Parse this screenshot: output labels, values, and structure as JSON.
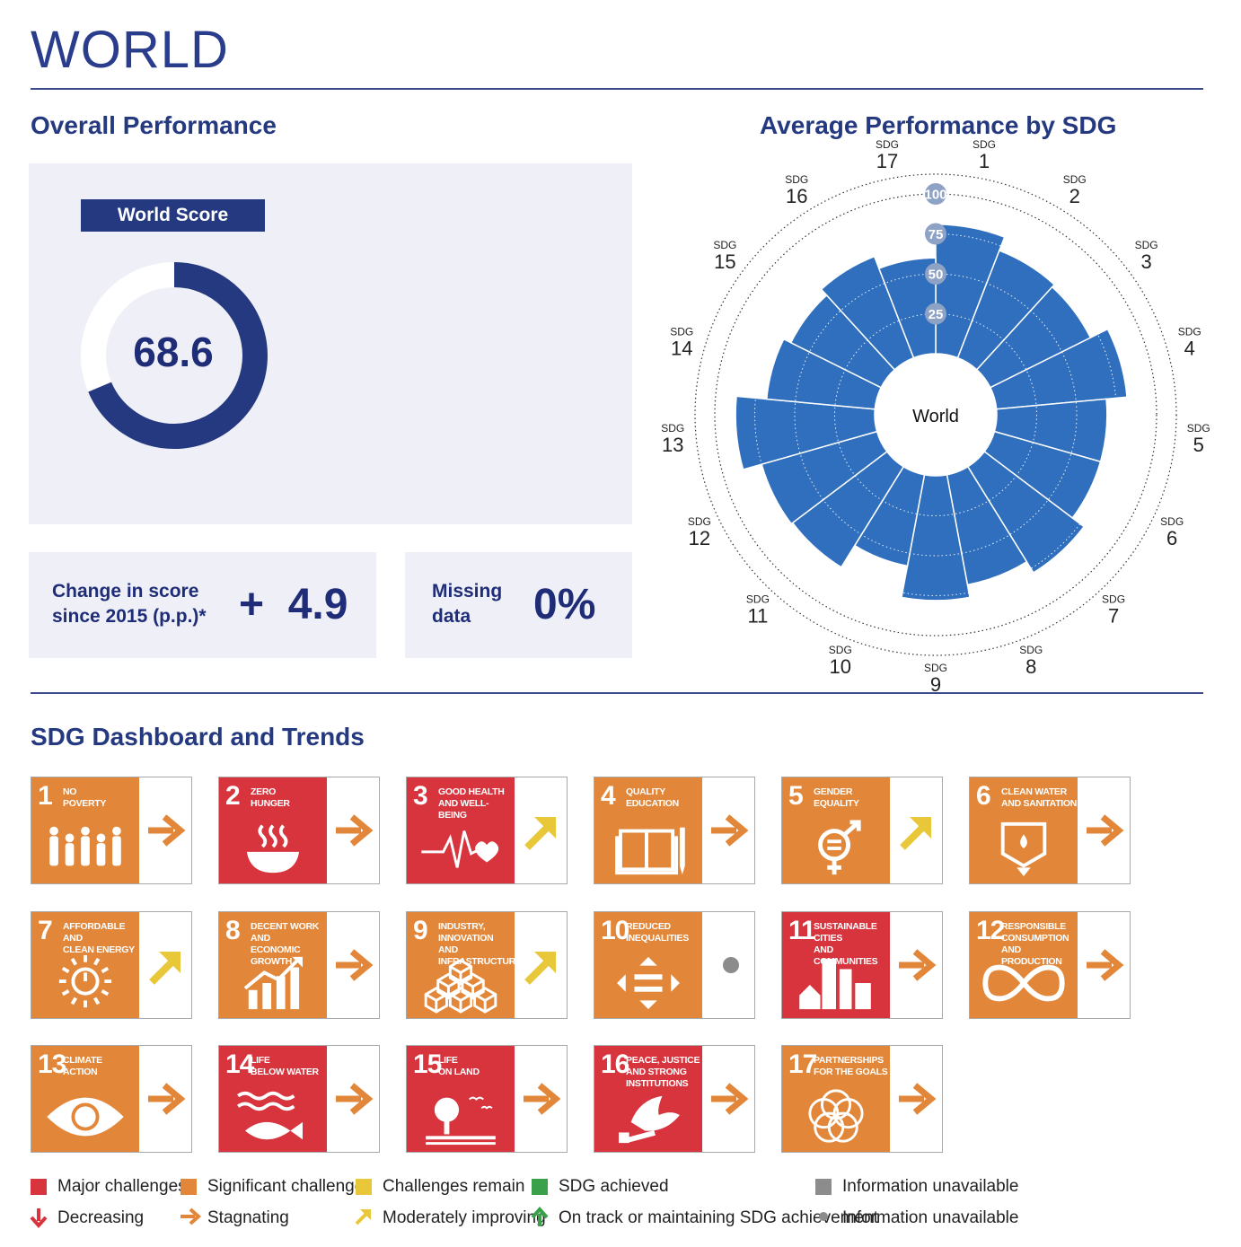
{
  "header": {
    "country": "WORLD"
  },
  "overall": {
    "title": "Overall Performance",
    "score_label": "World Score",
    "score": "68.6",
    "score_fraction": 0.686,
    "change_label_1": "Change in score",
    "change_label_2": "since 2015 (p.p.)*",
    "change_value": "+  4.9",
    "missing_label_1": "Missing",
    "missing_label_2": "data",
    "missing_value": "0%"
  },
  "chart_data": {
    "type": "radial-bar",
    "title": "Average Performance by SDG",
    "center_label": "World",
    "radial_ticks": [
      "25",
      "50",
      "75",
      "100"
    ],
    "rlim": [
      0,
      100
    ],
    "categories": [
      "SDG 1",
      "SDG 2",
      "SDG 3",
      "SDG 4",
      "SDG 5",
      "SDG 6",
      "SDG 7",
      "SDG 8",
      "SDG 9",
      "SDG 10",
      "SDG 11",
      "SDG 12",
      "SDG 13",
      "SDG 14",
      "SDG 15",
      "SDG 16",
      "SDG 17"
    ],
    "category_prefix": "SDG",
    "category_numbers": [
      "1",
      "2",
      "3",
      "4",
      "5",
      "6",
      "7",
      "8",
      "9",
      "10",
      "11",
      "12",
      "13",
      "14",
      "15",
      "16",
      "17"
    ],
    "values": [
      81,
      72,
      70,
      82,
      69,
      69,
      78,
      70,
      78,
      58,
      74,
      75,
      87,
      68,
      63,
      68,
      60
    ],
    "colors": {
      "bar": "#2f6fbd",
      "grid": "#444444",
      "tick_bg": "#8ea2c6"
    }
  },
  "dashboard": {
    "title": "SDG Dashboard and Trends",
    "tiles": [
      {
        "num": "1",
        "title": "NO\nPOVERTY",
        "color": "#e2873a",
        "trend": "stagnating",
        "icon": "family-icon"
      },
      {
        "num": "2",
        "title": "ZERO\nHUNGER",
        "color": "#d7343d",
        "trend": "stagnating",
        "icon": "bowl-icon"
      },
      {
        "num": "3",
        "title": "GOOD HEALTH\nAND WELL-BEING",
        "color": "#d7343d",
        "trend": "moderately-improving",
        "icon": "heartbeat-icon"
      },
      {
        "num": "4",
        "title": "QUALITY\nEDUCATION",
        "color": "#e2873a",
        "trend": "stagnating",
        "icon": "book-icon"
      },
      {
        "num": "5",
        "title": "GENDER\nEQUALITY",
        "color": "#e2873a",
        "trend": "moderately-improving",
        "icon": "gender-icon"
      },
      {
        "num": "6",
        "title": "CLEAN WATER\nAND SANITATION",
        "color": "#e2873a",
        "trend": "stagnating",
        "icon": "water-icon"
      },
      {
        "num": "7",
        "title": "AFFORDABLE AND\nCLEAN ENERGY",
        "color": "#e2873a",
        "trend": "moderately-improving",
        "icon": "sun-power-icon"
      },
      {
        "num": "8",
        "title": "DECENT WORK AND\nECONOMIC GROWTH",
        "color": "#e2873a",
        "trend": "stagnating",
        "icon": "growth-chart-icon"
      },
      {
        "num": "9",
        "title": "INDUSTRY, INNOVATION\nAND INFRASTRUCTURE",
        "color": "#e2873a",
        "trend": "moderately-improving",
        "icon": "cubes-icon"
      },
      {
        "num": "10",
        "title": "REDUCED\nINEQUALITIES",
        "color": "#e2873a",
        "trend": "information-unavailable",
        "icon": "arrows-equal-icon"
      },
      {
        "num": "11",
        "title": "SUSTAINABLE CITIES\nAND COMMUNITIES",
        "color": "#d7343d",
        "trend": "stagnating",
        "icon": "city-icon"
      },
      {
        "num": "12",
        "title": "RESPONSIBLE\nCONSUMPTION\nAND PRODUCTION",
        "color": "#e2873a",
        "trend": "stagnating",
        "icon": "infinity-icon"
      },
      {
        "num": "13",
        "title": "CLIMATE\nACTION",
        "color": "#e2873a",
        "trend": "stagnating",
        "icon": "eye-globe-icon"
      },
      {
        "num": "14",
        "title": "LIFE\nBELOW WATER",
        "color": "#d7343d",
        "trend": "stagnating",
        "icon": "fish-icon"
      },
      {
        "num": "15",
        "title": "LIFE\nON LAND",
        "color": "#d7343d",
        "trend": "stagnating",
        "icon": "tree-icon"
      },
      {
        "num": "16",
        "title": "PEACE, JUSTICE\nAND STRONG\nINSTITUTIONS",
        "color": "#d7343d",
        "trend": "stagnating",
        "icon": "dove-icon"
      },
      {
        "num": "17",
        "title": "PARTNERSHIPS\nFOR THE GOALS",
        "color": "#e2873a",
        "trend": "stagnating",
        "icon": "rings-icon"
      }
    ]
  },
  "legend": {
    "colors": [
      {
        "label": "Major challenges",
        "color": "#d7343d"
      },
      {
        "label": "Significant challenges",
        "color": "#e2873a"
      },
      {
        "label": "Challenges remain",
        "color": "#e8c838"
      },
      {
        "label": "SDG achieved",
        "color": "#3aa04a"
      },
      {
        "label": "Information unavailable",
        "color": "#8c8c8c"
      }
    ],
    "trends": [
      {
        "label": "Decreasing",
        "color": "#d7343d"
      },
      {
        "label": "Stagnating",
        "color": "#e2873a"
      },
      {
        "label": "Moderately improving",
        "color": "#e8c838"
      },
      {
        "label": "On track or maintaining SDG achievement",
        "color": "#3aa04a"
      },
      {
        "label": "Information unavailable",
        "color": "#8c8c8c"
      }
    ]
  }
}
